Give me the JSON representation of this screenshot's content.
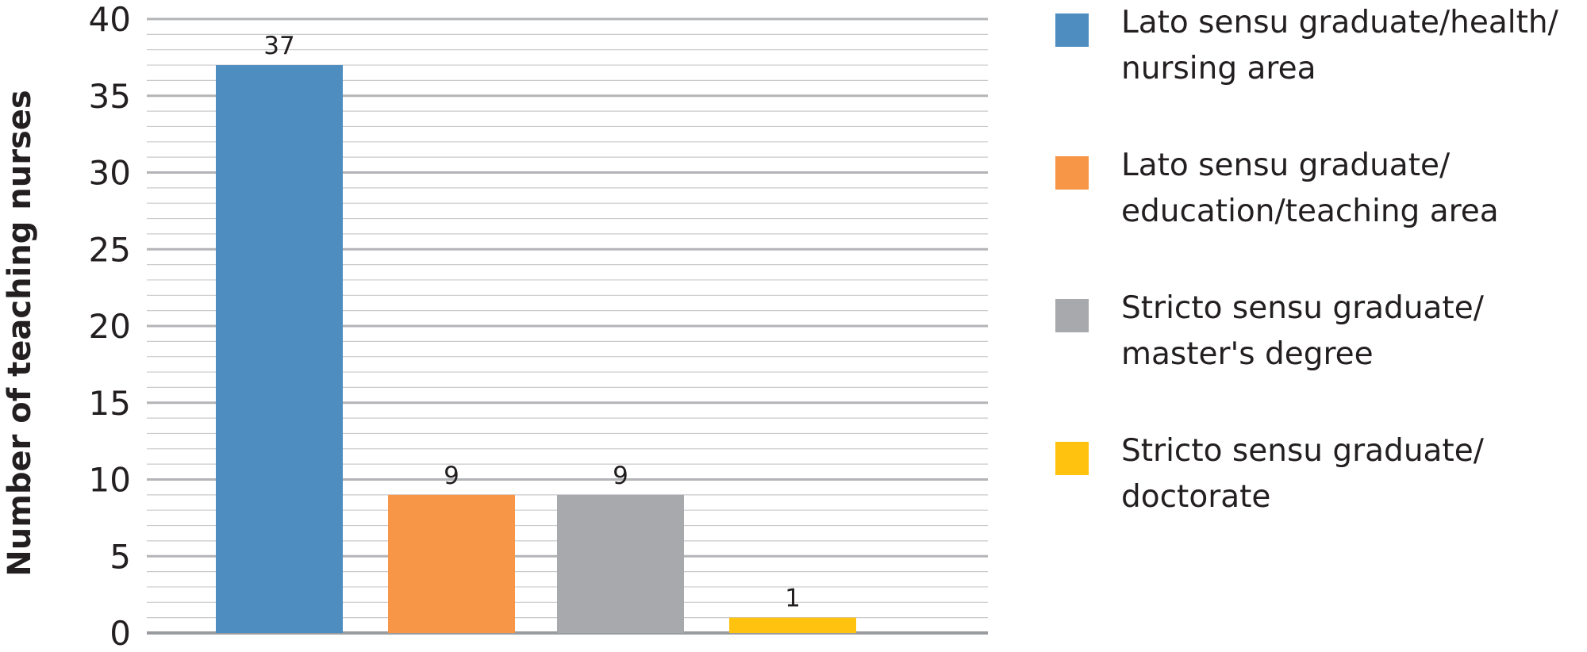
{
  "chart_data": {
    "type": "bar",
    "title": "",
    "xlabel": "",
    "ylabel": "Number of teaching nurses",
    "ylim": [
      0,
      40
    ],
    "yticks": [
      0,
      5,
      10,
      15,
      20,
      25,
      30,
      35,
      40
    ],
    "grid": true,
    "legend_position": "right",
    "categories": [
      "Lato sensu graduate/health/ nursing area",
      "Lato sensu graduate/ education/teaching area",
      "Stricto sensu graduate/ master's degree",
      "Stricto sensu graduate/ doctorate"
    ],
    "values": [
      37,
      9,
      9,
      1
    ],
    "data_labels": [
      "37",
      "9",
      "9",
      "1"
    ],
    "colors": [
      "#4e8dc0",
      "#f79646",
      "#a7a9ac",
      "#ffc20e"
    ]
  },
  "legend": {
    "items": [
      {
        "lines": [
          "Lato sensu graduate/health/",
          "nursing area"
        ],
        "color": "#4e8dc0"
      },
      {
        "lines": [
          "Lato sensu graduate/",
          "education/teaching area"
        ],
        "color": "#f79646"
      },
      {
        "lines": [
          "Stricto sensu graduate/",
          "master's degree"
        ],
        "color": "#a7a9ac"
      },
      {
        "lines": [
          "Stricto sensu graduate/",
          "doctorate"
        ],
        "color": "#ffc20e"
      }
    ]
  }
}
